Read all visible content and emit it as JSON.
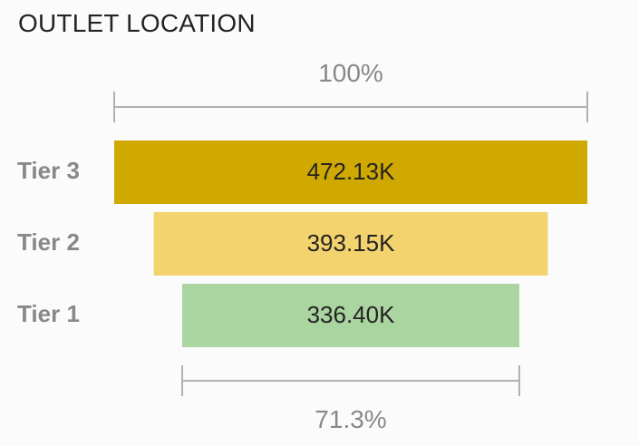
{
  "visual": {
    "title": "OUTLET LOCATION"
  },
  "chart_data": {
    "type": "funnel",
    "title": "OUTLET LOCATION",
    "categories": [
      "Tier 3",
      "Tier 2",
      "Tier 1"
    ],
    "values": [
      472130,
      393150,
      336400
    ],
    "value_labels": [
      "472.13K",
      "393.15K",
      "336.40K"
    ],
    "colors": [
      "#cfa800",
      "#f2d36d",
      "#aad4a0"
    ],
    "top_reference_label": "100%",
    "bottom_reference_label": "71.3%"
  }
}
